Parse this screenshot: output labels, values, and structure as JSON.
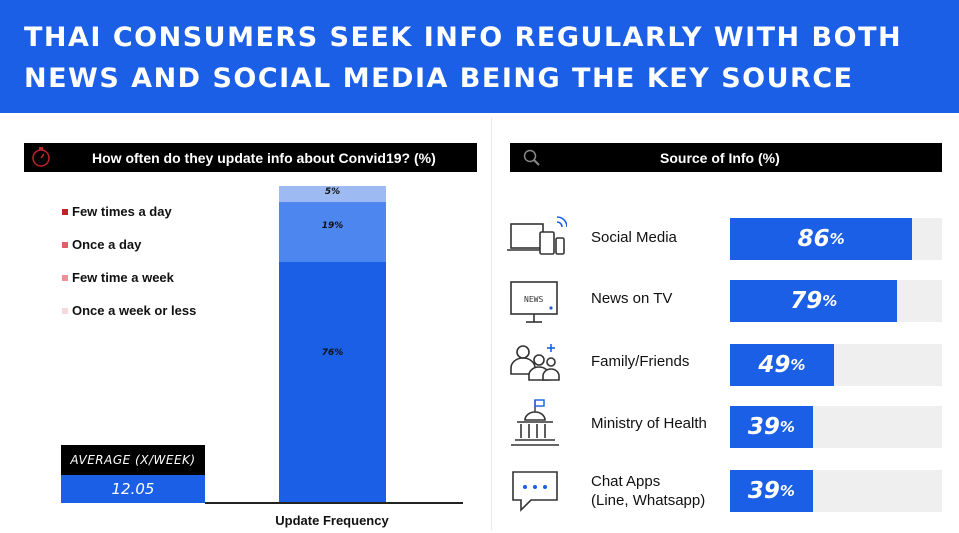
{
  "banner": {
    "line1": "THAI CONSUMERS SEEK INFO REGULARLY WITH BOTH",
    "line2": "NEWS AND SOCIAL MEDIA BEING THE KEY SOURCE"
  },
  "left_panel": {
    "title": "How often do they update info about Convid19? (%)",
    "icon": "stopwatch-icon",
    "average_label": "AVERAGE (X/WEEK)",
    "average_value": "12.05"
  },
  "right_panel": {
    "title": "Source of Info (%)",
    "icon": "magnifier-icon"
  },
  "colors": {
    "accent": "#1a5fe6",
    "seg_few_times_day": "#1a5fe6",
    "seg_once_day": "#4d86ee",
    "seg_few_week": "#9dbbf2",
    "track": "#efefef"
  },
  "chart_data": [
    {
      "type": "bar",
      "stacked": true,
      "xlabel": "Update Frequency",
      "categories": [
        "Update Frequency"
      ],
      "series": [
        {
          "name": "Few times a day",
          "values": [
            76
          ],
          "label": "76%",
          "color": "#1a5fe6",
          "swatch": "#c0222a"
        },
        {
          "name": "Once a day",
          "values": [
            19
          ],
          "label": "19%",
          "color": "#4d86ee",
          "swatch": "#e0606a"
        },
        {
          "name": "Few time a week",
          "values": [
            5
          ],
          "label": "5%",
          "color": "#9dbbf2",
          "swatch": "#f08f97"
        },
        {
          "name": "Once a week or less",
          "values": [
            0
          ],
          "label": "",
          "color": "#f6d9dc",
          "swatch": "#f6d9dc"
        }
      ],
      "ylim": [
        0,
        100
      ],
      "legend": "left"
    },
    {
      "type": "bar",
      "orientation": "horizontal",
      "title": "Source of Info (%)",
      "categories": [
        "Social Media",
        "News on TV",
        "Family/Friends",
        "Ministry of Health",
        "Chat Apps (Line, Whatsapp)"
      ],
      "values": [
        86,
        79,
        49,
        39,
        39
      ],
      "xlim": [
        0,
        100
      ],
      "rows": [
        {
          "label": "Social Media",
          "label2": "",
          "value": 86,
          "icon": "devices-icon",
          "num": "86",
          "unit": "%"
        },
        {
          "label": "News on TV",
          "label2": "",
          "value": 79,
          "icon": "tv-news-icon",
          "num": "79",
          "unit": "%"
        },
        {
          "label": "Family/Friends",
          "label2": "",
          "value": 49,
          "icon": "family-icon",
          "num": "49",
          "unit": "%"
        },
        {
          "label": "Ministry of Health",
          "label2": "",
          "value": 39,
          "icon": "government-building-icon",
          "num": "39",
          "unit": "%"
        },
        {
          "label": "Chat Apps",
          "label2": "(Line, Whatsapp)",
          "value": 39,
          "icon": "chat-bubble-icon",
          "num": "39",
          "unit": "%"
        }
      ]
    }
  ]
}
